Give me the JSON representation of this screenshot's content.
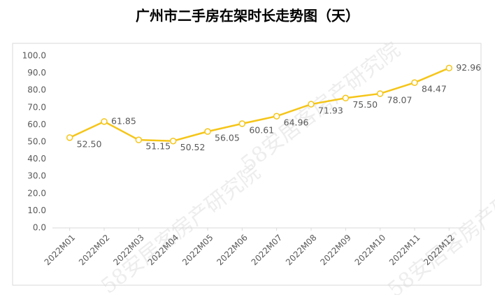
{
  "chart_data": {
    "type": "line",
    "title": "广州市二手房在架时长走势图（天）",
    "watermark": "58安居客房产研究院",
    "categories": [
      "2022M01",
      "2022M02",
      "2022M03",
      "2022M04",
      "2022M05",
      "2022M06",
      "2022M07",
      "2022M08",
      "2022M09",
      "2022M10",
      "2022M11",
      "2022M12"
    ],
    "values": [
      52.5,
      61.85,
      51.15,
      50.52,
      56.05,
      60.61,
      64.96,
      71.93,
      75.5,
      78.07,
      84.47,
      92.96
    ],
    "value_labels": [
      "52.50",
      "61.85",
      "51.15",
      "50.52",
      "56.05",
      "60.61",
      "64.96",
      "71.93",
      "75.50",
      "78.07",
      "84.47",
      "92.96"
    ],
    "color": "#f5c518",
    "ylim": [
      0,
      100
    ],
    "yticks": [
      {
        "value": 0,
        "label": "0.0"
      },
      {
        "value": 10,
        "label": "10.0"
      },
      {
        "value": 20,
        "label": "20.0"
      },
      {
        "value": 30,
        "label": "30.0"
      },
      {
        "value": 40,
        "label": "40.0"
      },
      {
        "value": 50,
        "label": "50.0"
      },
      {
        "value": 60,
        "label": "60.0"
      },
      {
        "value": 70,
        "label": "70.0"
      },
      {
        "value": 80,
        "label": "80.0"
      },
      {
        "value": 90,
        "label": "90.0"
      },
      {
        "value": 100,
        "label": "100.0"
      }
    ],
    "grid": false
  }
}
